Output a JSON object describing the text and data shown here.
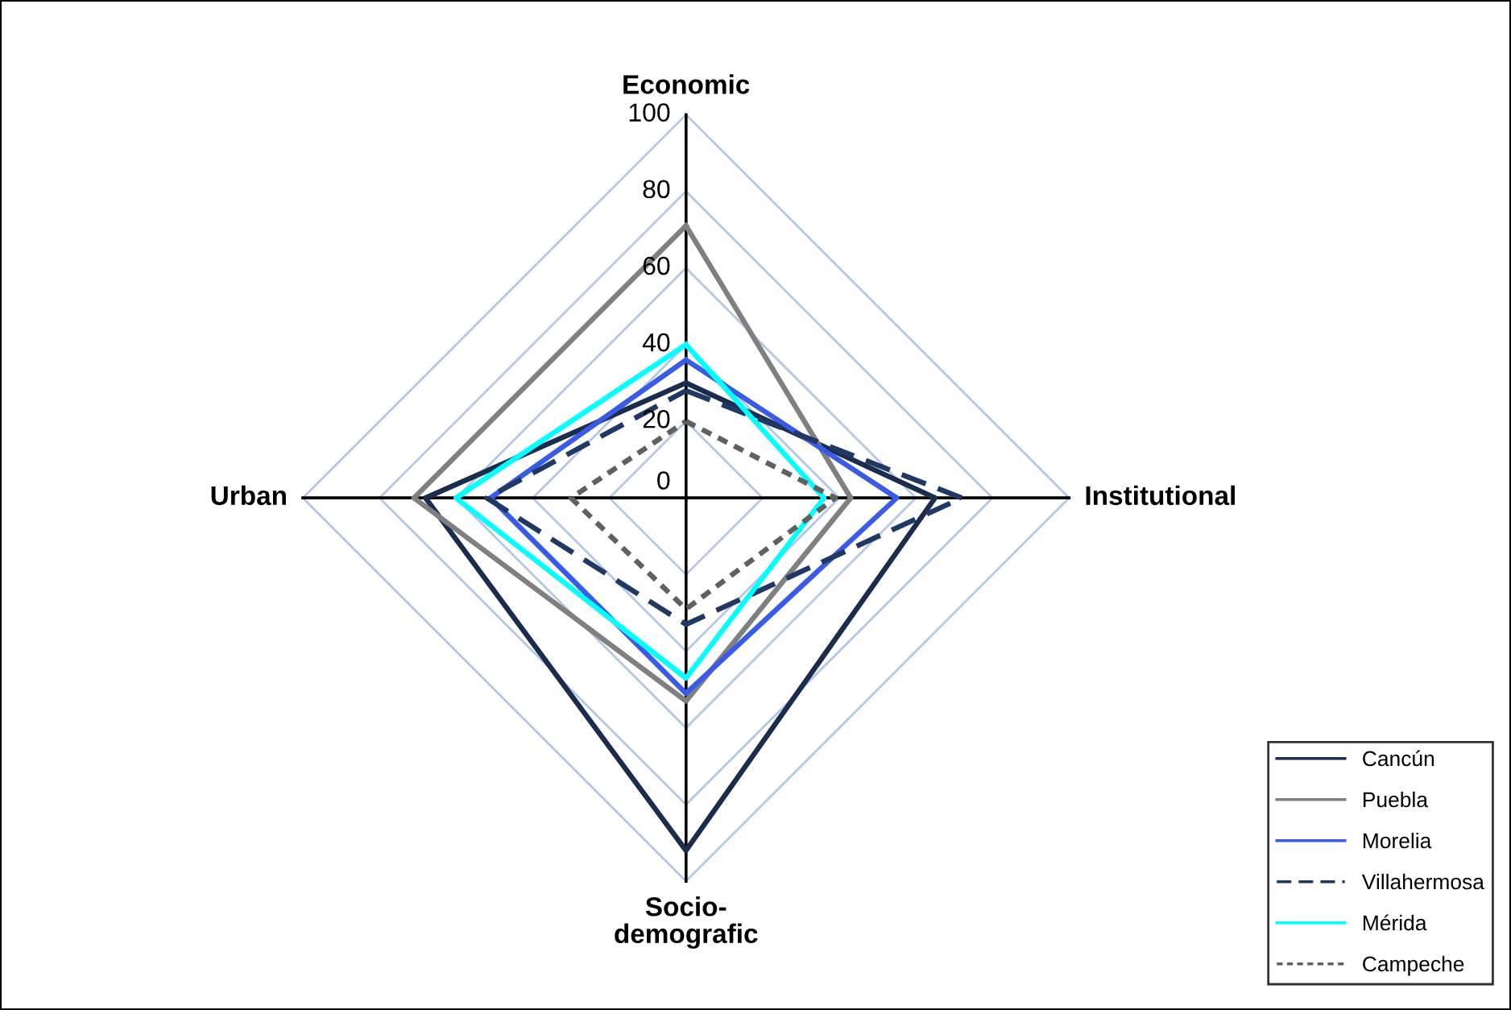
{
  "chart_data": {
    "type": "radar",
    "categories": [
      "Economic",
      "Institutional",
      "Socio-\ndemografic",
      "Urban"
    ],
    "ylim": [
      0,
      100
    ],
    "yticks": [
      0,
      20,
      40,
      60,
      80,
      100
    ],
    "grid": true,
    "legend": "bottom right",
    "series": [
      {
        "name": "Cancún",
        "color": "#1b2d4f",
        "line_style": "solid",
        "values": [
          30,
          65,
          92,
          68
        ]
      },
      {
        "name": "Puebla",
        "color": "#808080",
        "line_style": "solid",
        "values": [
          71,
          43,
          53,
          71
        ]
      },
      {
        "name": "Morelia",
        "color": "#3a5ae8",
        "line_style": "solid",
        "values": [
          36,
          55,
          51,
          51
        ]
      },
      {
        "name": "Villahermosa",
        "color": "#1f3864",
        "line_style": "dashed",
        "values": [
          28,
          72,
          33,
          52
        ]
      },
      {
        "name": "Mérida",
        "color": "#00ffff",
        "line_style": "solid",
        "values": [
          40,
          36,
          47,
          60
        ]
      },
      {
        "name": "Campeche",
        "color": "#606060",
        "line_style": "dotted",
        "values": [
          20,
          39,
          29,
          30
        ]
      }
    ]
  }
}
